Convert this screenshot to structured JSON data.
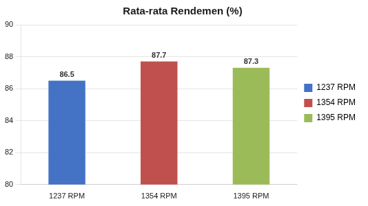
{
  "chart_data": {
    "type": "bar",
    "title": "Rata-rata Rendemen (%)",
    "categories": [
      "1237 RPM",
      "1354 RPM",
      "1395 RPM"
    ],
    "values": [
      86.5,
      87.7,
      87.3
    ],
    "colors": [
      "#4472C4",
      "#C0504D",
      "#9BBB59"
    ],
    "ylim": [
      80,
      90
    ],
    "yticks": [
      80,
      82,
      84,
      86,
      88,
      90
    ],
    "grid": true,
    "legend": "right",
    "data_labels": true
  }
}
